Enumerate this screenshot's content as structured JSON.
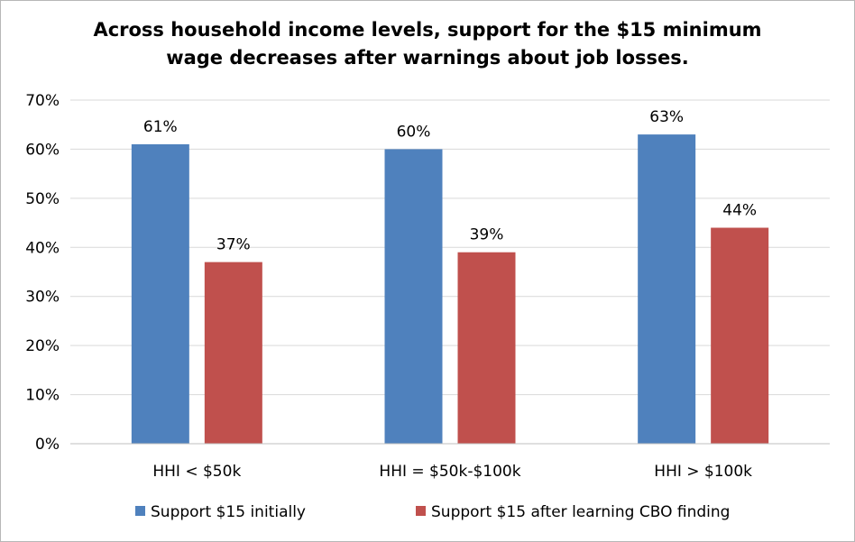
{
  "chart_data": {
    "type": "bar",
    "title_lines": [
      "Across household income levels, support for the $15 minimum",
      "wage decreases after warnings about job losses."
    ],
    "categories": [
      "HHI < $50k",
      "HHI = $50k-$100k",
      "HHI > $100k"
    ],
    "series": [
      {
        "name": "Support $15 initially",
        "color": "#4f81bd",
        "values": [
          61,
          60,
          63
        ],
        "labels": [
          "61%",
          "60%",
          "63%"
        ]
      },
      {
        "name": "Support $15 after learning CBO finding",
        "color": "#c0504d",
        "values": [
          37,
          39,
          44
        ],
        "labels": [
          "37%",
          "39%",
          "44%"
        ]
      }
    ],
    "ylim": [
      0,
      70
    ],
    "yticks": [
      0,
      10,
      20,
      30,
      40,
      50,
      60,
      70
    ],
    "ytick_labels": [
      "0%",
      "10%",
      "20%",
      "30%",
      "40%",
      "50%",
      "60%",
      "70%"
    ],
    "grid": true,
    "legend_position": "bottom",
    "xlabel": "",
    "ylabel": ""
  }
}
